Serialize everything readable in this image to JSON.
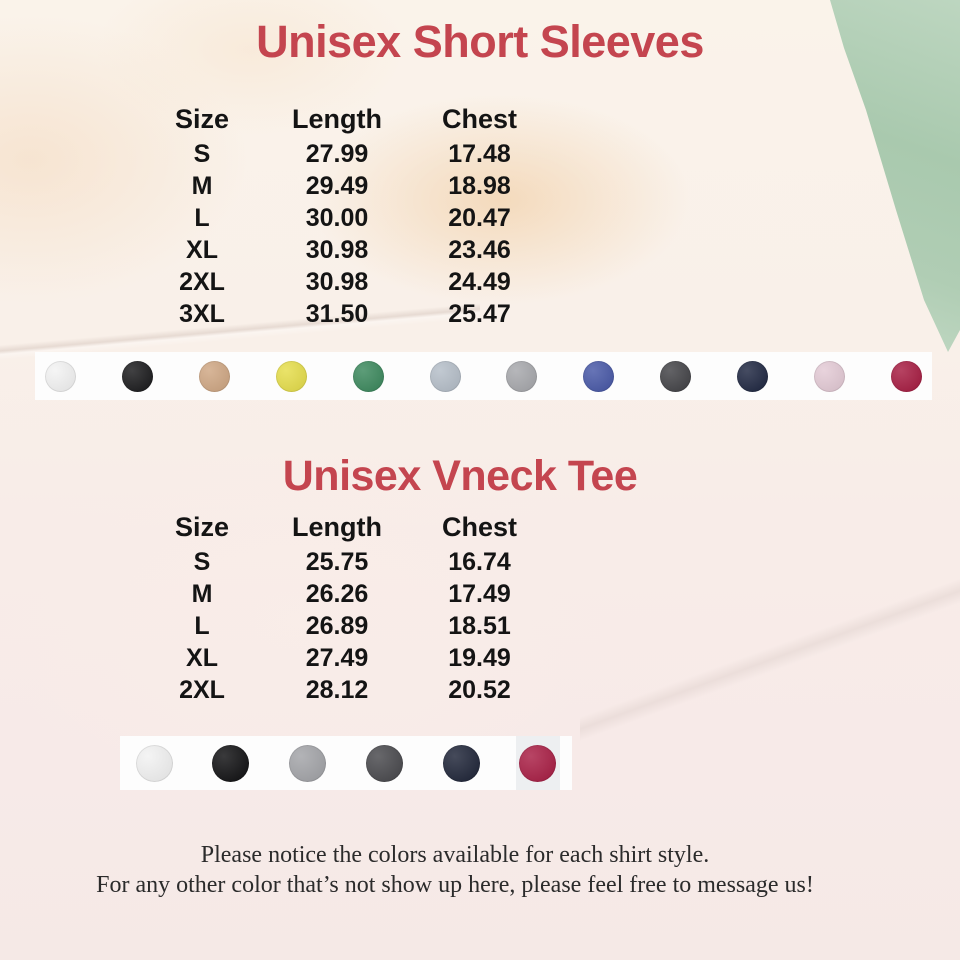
{
  "accent_color": "#c4454f",
  "sections": [
    {
      "title": "Unisex Short Sleeves",
      "shirt_icon": "crew-neck-tee-icon",
      "shirt_color": "#3b3d42",
      "table": {
        "headers": [
          "Size",
          "Length",
          "Chest"
        ],
        "rows": [
          [
            "S",
            "27.99",
            "17.48"
          ],
          [
            "M",
            "29.49",
            "18.98"
          ],
          [
            "L",
            "30.00",
            "20.47"
          ],
          [
            "XL",
            "30.98",
            "23.46"
          ],
          [
            "2XL",
            "30.98",
            "24.49"
          ],
          [
            "3XL",
            "31.50",
            "25.47"
          ]
        ]
      },
      "swatches": [
        {
          "name": "white",
          "hex": "#f3f3f3"
        },
        {
          "name": "black",
          "hex": "#1d1d1f"
        },
        {
          "name": "heather-tan",
          "hex": "#d0a885"
        },
        {
          "name": "yellow",
          "hex": "#e6de4d"
        },
        {
          "name": "heather-green",
          "hex": "#3e8a5f"
        },
        {
          "name": "light-slate",
          "hex": "#b6bfc9"
        },
        {
          "name": "heather-gray",
          "hex": "#a8a9ad"
        },
        {
          "name": "heather-blue",
          "hex": "#4a5aa8"
        },
        {
          "name": "dark-heather",
          "hex": "#454549"
        },
        {
          "name": "navy",
          "hex": "#222a44"
        },
        {
          "name": "light-pink",
          "hex": "#e4cbd6"
        },
        {
          "name": "cardinal-red",
          "hex": "#a81f44"
        }
      ]
    },
    {
      "title": "Unisex Vneck Tee",
      "shirt_icon": "v-neck-tee-icon",
      "shirt_color": "#17171a",
      "table": {
        "headers": [
          "Size",
          "Length",
          "Chest"
        ],
        "rows": [
          [
            "S",
            "25.75",
            "16.74"
          ],
          [
            "M",
            "26.26",
            "17.49"
          ],
          [
            "L",
            "26.89",
            "18.51"
          ],
          [
            "XL",
            "27.49",
            "19.49"
          ],
          [
            "2XL",
            "28.12",
            "20.52"
          ]
        ]
      },
      "swatches": [
        {
          "name": "white",
          "hex": "#f2f2f2"
        },
        {
          "name": "black",
          "hex": "#141416"
        },
        {
          "name": "heather-gray",
          "hex": "#a4a5a9"
        },
        {
          "name": "dark-heather",
          "hex": "#4b4b4f"
        },
        {
          "name": "navy",
          "hex": "#22283b"
        },
        {
          "name": "cardinal-red",
          "hex": "#aa2147",
          "tile": "#edeff1"
        }
      ]
    }
  ],
  "footer": {
    "line1": "Please notice the colors available for each shirt style.",
    "line2": "For any other color that’s not show up here, please feel free to message us!"
  }
}
